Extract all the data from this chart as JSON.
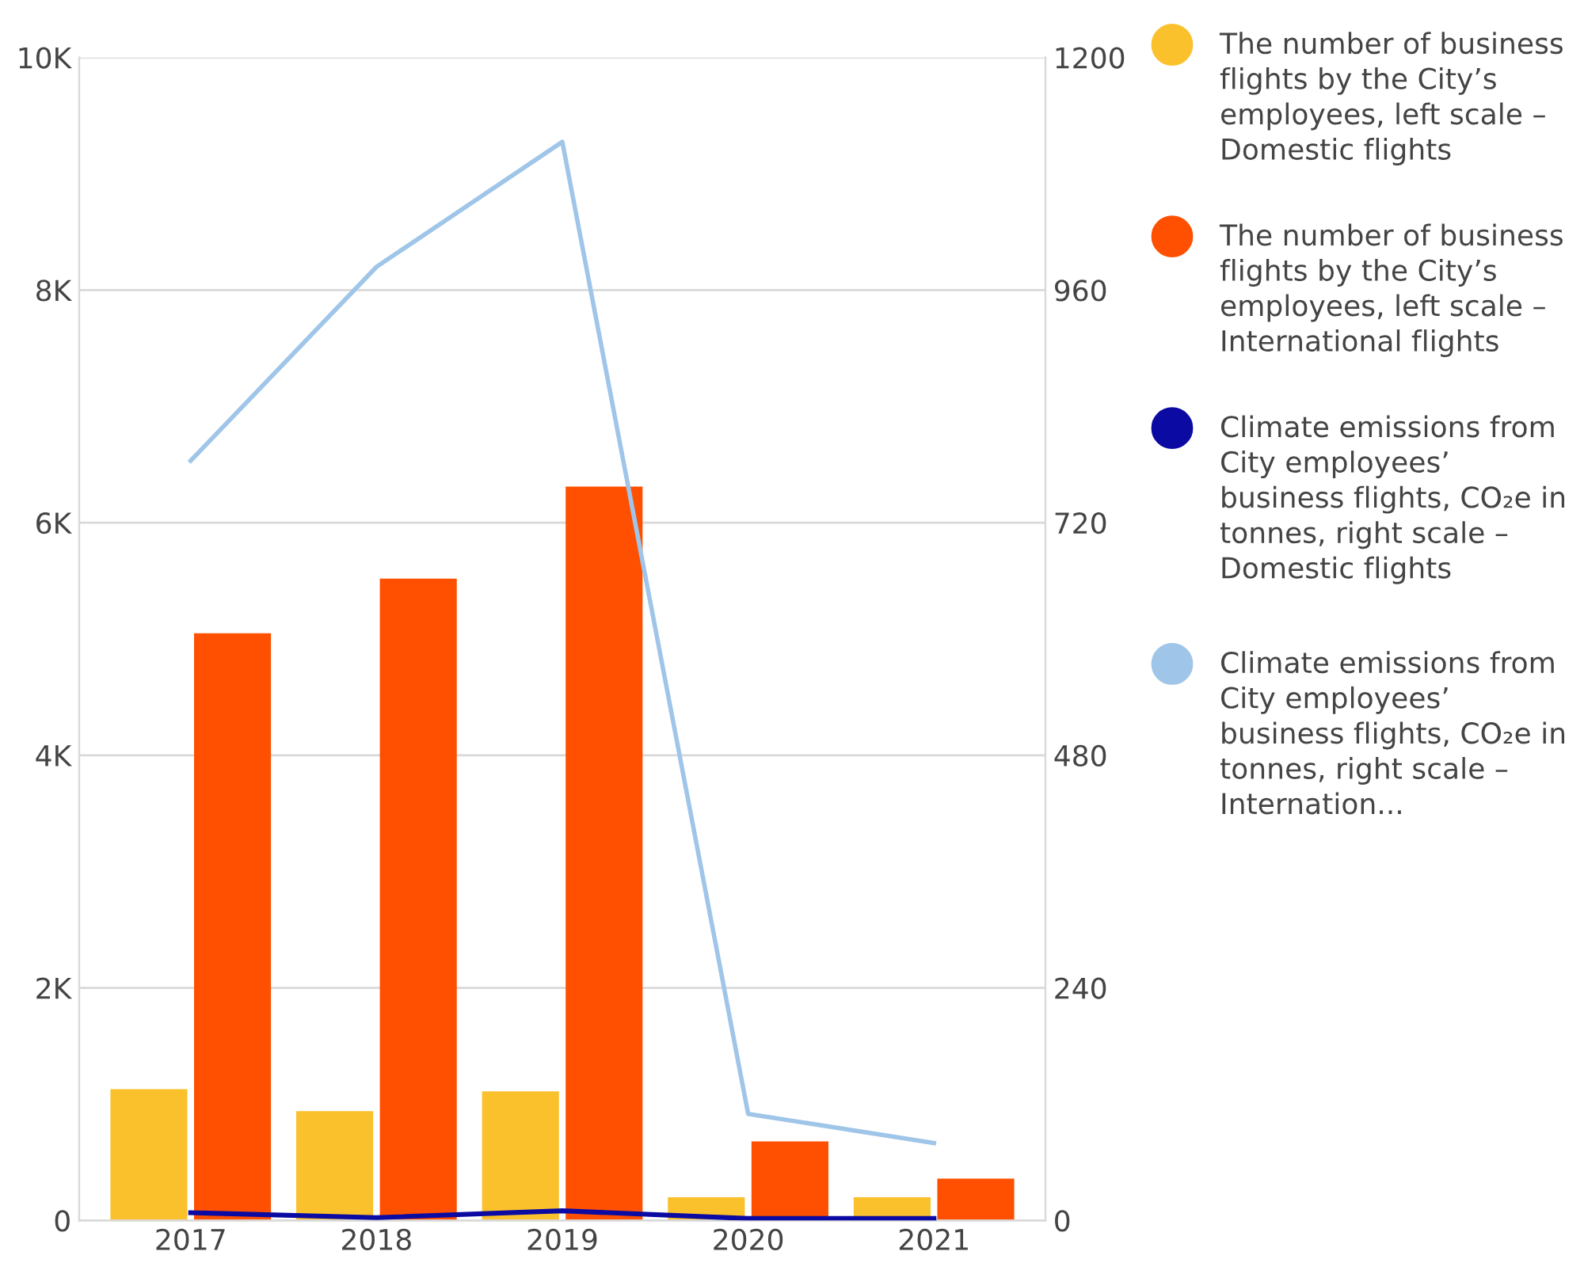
{
  "chart_data": {
    "type": "bar",
    "categories": [
      "2017",
      "2018",
      "2019",
      "2020",
      "2021"
    ],
    "series": [
      {
        "name": "The number of business flights by the City’s employees, left scale – Domestic flights",
        "color": "#fbc12d",
        "values": [
          1130,
          940,
          1110,
          200,
          200
        ]
      },
      {
        "name": "The number of business flights by the City’s employees, left scale – International flights",
        "color": "#fe5000",
        "values": [
          5050,
          5520,
          6310,
          680,
          360
        ]
      },
      {
        "name": "Climate emissions from City employees’ business flights, CO₂e in tonnes, right scale – Domestic flights",
        "color": "#0b0aa2",
        "type": "line",
        "axis": "y2",
        "values": [
          8,
          3,
          10,
          2,
          2
        ]
      },
      {
        "name": "Climate emissions from City employees’ business flights, CO₂e in tonnes, right scale – Internation...",
        "color": "#9fc5e8",
        "type": "line",
        "axis": "y2",
        "values": [
          784,
          984,
          1113,
          110,
          80
        ]
      }
    ],
    "ylim": [
      0,
      10000
    ],
    "yticks": [
      {
        "value": 0,
        "label": "0"
      },
      {
        "value": 2000,
        "label": "2K"
      },
      {
        "value": 4000,
        "label": "4K"
      },
      {
        "value": 6000,
        "label": "6K"
      },
      {
        "value": 8000,
        "label": "8K"
      },
      {
        "value": 10000,
        "label": "10K"
      }
    ],
    "y2lim": [
      0,
      1200
    ],
    "y2ticks": [
      0,
      240,
      480,
      720,
      960,
      1200
    ],
    "grid": "y",
    "legend": "right"
  }
}
